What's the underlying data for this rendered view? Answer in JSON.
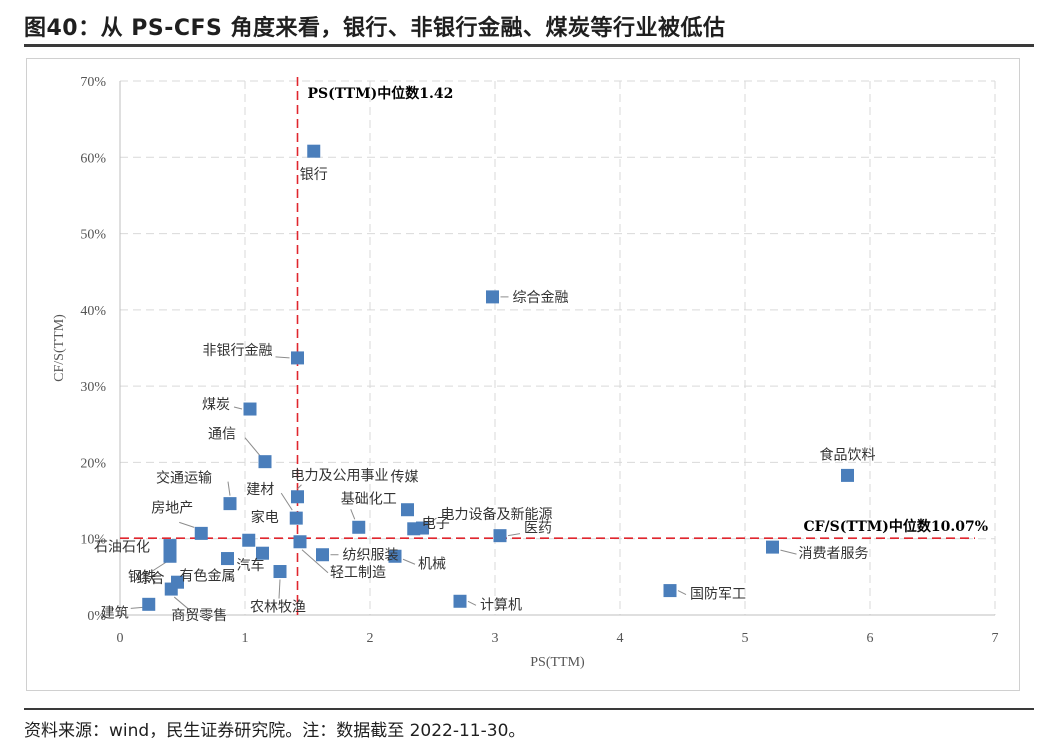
{
  "header": {
    "title": "图40：从 PS-CFS 角度来看，银行、非银行金融、煤炭等行业被低估"
  },
  "footer": {
    "source": "资料来源：wind，民生证券研究院。注：数据截至 2022-11-30。"
  },
  "chart_data": {
    "type": "scatter",
    "title": "",
    "xlabel": "PS(TTM)",
    "ylabel": "CF/S(TTM)",
    "xlim": [
      0,
      7
    ],
    "ylim": [
      0,
      70
    ],
    "x_ticks": [
      "0",
      "1",
      "2",
      "3",
      "4",
      "5",
      "6",
      "7"
    ],
    "y_ticks": [
      "0%",
      "10%",
      "20%",
      "30%",
      "40%",
      "50%",
      "60%",
      "70%"
    ],
    "grid": "dashed",
    "legend": "none",
    "marker_color": "#4a7ebb",
    "median_line_color": "#e0262e",
    "median_x": {
      "value": 1.42,
      "label": "PS(TTM)中位数1.42"
    },
    "median_y": {
      "value": 10.07,
      "label": "CF/S(TTM)中位数10.07%"
    },
    "points": [
      {
        "name": "银行",
        "x": 1.55,
        "y": 60.8
      },
      {
        "name": "综合金融",
        "x": 2.98,
        "y": 41.7
      },
      {
        "name": "非银行金融",
        "x": 1.42,
        "y": 33.7
      },
      {
        "name": "煤炭",
        "x": 1.04,
        "y": 27.0
      },
      {
        "name": "通信",
        "x": 1.16,
        "y": 20.1
      },
      {
        "name": "食品饮料",
        "x": 5.82,
        "y": 18.3
      },
      {
        "name": "交通运输",
        "x": 0.88,
        "y": 14.6
      },
      {
        "name": "电力及公用事业",
        "x": 1.42,
        "y": 15.5
      },
      {
        "name": "建材",
        "x": 1.41,
        "y": 12.7
      },
      {
        "name": "传媒",
        "x": 2.3,
        "y": 13.8
      },
      {
        "name": "基础化工",
        "x": 1.91,
        "y": 11.5
      },
      {
        "name": "电子",
        "x": 2.35,
        "y": 11.3
      },
      {
        "name": "电力设备及新能源",
        "x": 2.42,
        "y": 11.4
      },
      {
        "name": "房地产",
        "x": 0.65,
        "y": 10.7
      },
      {
        "name": "医药",
        "x": 3.04,
        "y": 10.4
      },
      {
        "name": "家电",
        "x": 1.03,
        "y": 9.8
      },
      {
        "name": "轻工制造",
        "x": 1.44,
        "y": 9.6
      },
      {
        "name": "石油石化",
        "x": 0.4,
        "y": 9.1
      },
      {
        "name": "消费者服务",
        "x": 5.22,
        "y": 8.9
      },
      {
        "name": "纺织服装",
        "x": 1.62,
        "y": 7.9
      },
      {
        "name": "机械",
        "x": 2.2,
        "y": 7.7
      },
      {
        "name": "汽车",
        "x": 1.14,
        "y": 8.1
      },
      {
        "name": "钢铁",
        "x": 0.4,
        "y": 7.7
      },
      {
        "name": "有色金属",
        "x": 0.86,
        "y": 7.4
      },
      {
        "name": "农林牧渔",
        "x": 1.28,
        "y": 5.7
      },
      {
        "name": "综合",
        "x": 0.46,
        "y": 4.3
      },
      {
        "name": "商贸零售",
        "x": 0.41,
        "y": 3.4
      },
      {
        "name": "国防军工",
        "x": 4.4,
        "y": 3.2
      },
      {
        "name": "计算机",
        "x": 2.72,
        "y": 1.8
      },
      {
        "name": "建筑",
        "x": 0.23,
        "y": 1.4
      }
    ]
  }
}
